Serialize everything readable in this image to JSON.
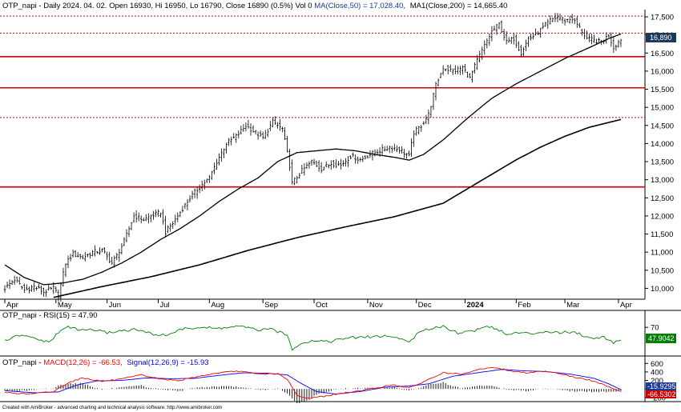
{
  "header": {
    "symbol": "OTP_napi",
    "info": "OTP_napi - Daily 2024. 04. 02. Open 16930, Hi 16950, Lo 16790, Close 16890 (0.5%) Vol 0",
    "ma50_label": "MA(Close,50) = 17,028.40,",
    "ma200_label": "MA1(Close,200) = 14,665.40"
  },
  "footer": {
    "text": "Created with AmiBroker - advanced charting and technical analysis software. http://www.amibroker.com"
  },
  "colors": {
    "price_bar": "#000000",
    "ma50": "#000000",
    "ma200": "#000000",
    "hline_solid": "#cc0000",
    "hline_dotted": "#cc0000",
    "rsi": "#008000",
    "macd": "#ff0000",
    "signal": "#0000ff",
    "histogram": "#000000",
    "badge_bg": "#1c3a57",
    "badge_green": "#008000",
    "badge_red": "#cc0000",
    "axis": "#000000"
  },
  "chart_data": {
    "type": "candlestick",
    "title": "OTP_napi - Daily 2024. 04. 02.",
    "ohlc_last": {
      "open": 16930,
      "high": 16950,
      "low": 16790,
      "close": 16890,
      "change": "0.5%",
      "volume": 0
    },
    "current_price_label": "16,890",
    "y_ticks": [
      "10,000",
      "10,500",
      "11,000",
      "11,500",
      "12,000",
      "12,500",
      "13,000",
      "13,500",
      "14,000",
      "14,500",
      "15,000",
      "15,500",
      "16,000",
      "16,500",
      "17,000",
      "17,500"
    ],
    "ylim": [
      9700,
      17700
    ],
    "x_labels": [
      "Apr",
      "May",
      "Jun",
      "Jul",
      "Aug",
      "Sep",
      "Oct",
      "Nov",
      "Dec",
      "2024",
      "Feb",
      "Mar",
      "Apr"
    ],
    "horizontal_lines": [
      {
        "value": 17520,
        "style": "dotted"
      },
      {
        "value": 17050,
        "style": "dotted"
      },
      {
        "value": 16400,
        "style": "solid"
      },
      {
        "value": 15540,
        "style": "solid"
      },
      {
        "value": 14720,
        "style": "dotted"
      },
      {
        "value": 12800,
        "style": "solid"
      }
    ],
    "close_anchors": [
      [
        0,
        10000
      ],
      [
        4,
        10250
      ],
      [
        8,
        9950
      ],
      [
        12,
        10050
      ],
      [
        16,
        9900
      ],
      [
        20,
        10000
      ],
      [
        22,
        9800
      ],
      [
        25,
        10700
      ],
      [
        28,
        10950
      ],
      [
        32,
        10850
      ],
      [
        36,
        11000
      ],
      [
        40,
        11050
      ],
      [
        44,
        10700
      ],
      [
        46,
        10900
      ],
      [
        49,
        11300
      ],
      [
        53,
        12000
      ],
      [
        57,
        11900
      ],
      [
        60,
        12000
      ],
      [
        64,
        12100
      ],
      [
        66,
        11550
      ],
      [
        69,
        11800
      ],
      [
        72,
        12100
      ],
      [
        76,
        12500
      ],
      [
        80,
        12800
      ],
      [
        84,
        13050
      ],
      [
        87,
        13500
      ],
      [
        91,
        14000
      ],
      [
        95,
        14200
      ],
      [
        99,
        14500
      ],
      [
        103,
        14300
      ],
      [
        106,
        14150
      ],
      [
        110,
        14600
      ],
      [
        114,
        14400
      ],
      [
        117,
        13400
      ],
      [
        118,
        12900
      ],
      [
        122,
        13250
      ],
      [
        126,
        13500
      ],
      [
        130,
        13300
      ],
      [
        134,
        13450
      ],
      [
        138,
        13400
      ],
      [
        142,
        13650
      ],
      [
        146,
        13550
      ],
      [
        150,
        13700
      ],
      [
        154,
        13800
      ],
      [
        158,
        13900
      ],
      [
        162,
        13850
      ],
      [
        166,
        13650
      ],
      [
        168,
        14300
      ],
      [
        171,
        14500
      ],
      [
        174,
        14800
      ],
      [
        177,
        15600
      ],
      [
        180,
        16100
      ],
      [
        184,
        16000
      ],
      [
        188,
        16100
      ],
      [
        191,
        15800
      ],
      [
        194,
        16300
      ],
      [
        197,
        16700
      ],
      [
        200,
        17100
      ],
      [
        203,
        17300
      ],
      [
        206,
        16800
      ],
      [
        209,
        16900
      ],
      [
        212,
        16500
      ],
      [
        215,
        16900
      ],
      [
        218,
        17000
      ],
      [
        221,
        17200
      ],
      [
        224,
        17400
      ],
      [
        227,
        17500
      ],
      [
        230,
        17400
      ],
      [
        233,
        17450
      ],
      [
        236,
        17200
      ],
      [
        239,
        16900
      ],
      [
        242,
        16850
      ],
      [
        245,
        16800
      ],
      [
        248,
        17000
      ],
      [
        250,
        16650
      ],
      [
        253,
        16890
      ]
    ],
    "ma50_anchors": [
      [
        0,
        10650
      ],
      [
        8,
        10300
      ],
      [
        16,
        10100
      ],
      [
        24,
        10150
      ],
      [
        32,
        10250
      ],
      [
        40,
        10450
      ],
      [
        48,
        10700
      ],
      [
        56,
        11000
      ],
      [
        64,
        11350
      ],
      [
        72,
        11650
      ],
      [
        80,
        12000
      ],
      [
        88,
        12400
      ],
      [
        96,
        12750
      ],
      [
        104,
        13050
      ],
      [
        112,
        13500
      ],
      [
        120,
        13750
      ],
      [
        128,
        13800
      ],
      [
        136,
        13850
      ],
      [
        144,
        13800
      ],
      [
        152,
        13700
      ],
      [
        160,
        13620
      ],
      [
        166,
        13540
      ],
      [
        172,
        13700
      ],
      [
        180,
        14100
      ],
      [
        190,
        14700
      ],
      [
        200,
        15250
      ],
      [
        210,
        15650
      ],
      [
        220,
        16000
      ],
      [
        230,
        16350
      ],
      [
        240,
        16650
      ],
      [
        248,
        16900
      ],
      [
        253,
        17028
      ]
    ],
    "ma200_anchors": [
      [
        20,
        9750
      ],
      [
        40,
        10050
      ],
      [
        60,
        10320
      ],
      [
        80,
        10650
      ],
      [
        100,
        11050
      ],
      [
        120,
        11400
      ],
      [
        140,
        11700
      ],
      [
        160,
        11980
      ],
      [
        180,
        12350
      ],
      [
        190,
        12750
      ],
      [
        200,
        13150
      ],
      [
        210,
        13550
      ],
      [
        220,
        13900
      ],
      [
        230,
        14200
      ],
      [
        240,
        14450
      ],
      [
        253,
        14665
      ]
    ],
    "rsi": {
      "label": "OTP_napi - RSI(15) = 47.90",
      "value_label": "47.9042",
      "y_tick": "70",
      "ylim": [
        20,
        85
      ],
      "anchors": [
        [
          0,
          45
        ],
        [
          6,
          55
        ],
        [
          12,
          50
        ],
        [
          18,
          42
        ],
        [
          22,
          60
        ],
        [
          26,
          72
        ],
        [
          30,
          65
        ],
        [
          36,
          66
        ],
        [
          42,
          60
        ],
        [
          48,
          64
        ],
        [
          54,
          66
        ],
        [
          60,
          58
        ],
        [
          66,
          55
        ],
        [
          72,
          66
        ],
        [
          80,
          70
        ],
        [
          88,
          68
        ],
        [
          96,
          72
        ],
        [
          104,
          65
        ],
        [
          110,
          66
        ],
        [
          116,
          55
        ],
        [
          118,
          30
        ],
        [
          122,
          42
        ],
        [
          128,
          46
        ],
        [
          134,
          44
        ],
        [
          140,
          50
        ],
        [
          148,
          52
        ],
        [
          156,
          54
        ],
        [
          162,
          50
        ],
        [
          166,
          43
        ],
        [
          170,
          60
        ],
        [
          176,
          70
        ],
        [
          180,
          72
        ],
        [
          186,
          60
        ],
        [
          192,
          63
        ],
        [
          198,
          72
        ],
        [
          202,
          68
        ],
        [
          206,
          56
        ],
        [
          210,
          60
        ],
        [
          216,
          58
        ],
        [
          222,
          63
        ],
        [
          228,
          60
        ],
        [
          234,
          62
        ],
        [
          240,
          50
        ],
        [
          246,
          52
        ],
        [
          250,
          42
        ],
        [
          253,
          47.9
        ]
      ]
    },
    "macd": {
      "label_prefix": "OTP_napi - ",
      "macd_label": "MACD(12,26) = -66.53,",
      "signal_label": "Signal(12,26,9) = -15.93",
      "value_macd": "-66.5302",
      "value_signal": "-15.9295",
      "y_ticks": [
        "600",
        "400",
        "200",
        "0",
        "-200"
      ],
      "ylim": [
        -260,
        700
      ],
      "macd_anchors": [
        [
          0,
          -80
        ],
        [
          10,
          -120
        ],
        [
          20,
          -60
        ],
        [
          26,
          150
        ],
        [
          32,
          260
        ],
        [
          40,
          180
        ],
        [
          48,
          230
        ],
        [
          56,
          330
        ],
        [
          64,
          230
        ],
        [
          72,
          200
        ],
        [
          80,
          300
        ],
        [
          88,
          380
        ],
        [
          96,
          420
        ],
        [
          104,
          350
        ],
        [
          112,
          360
        ],
        [
          116,
          220
        ],
        [
          120,
          -150
        ],
        [
          124,
          -220
        ],
        [
          130,
          -180
        ],
        [
          140,
          -90
        ],
        [
          150,
          0
        ],
        [
          160,
          100
        ],
        [
          166,
          20
        ],
        [
          172,
          170
        ],
        [
          180,
          380
        ],
        [
          188,
          340
        ],
        [
          196,
          480
        ],
        [
          202,
          500
        ],
        [
          208,
          420
        ],
        [
          214,
          380
        ],
        [
          220,
          420
        ],
        [
          226,
          390
        ],
        [
          232,
          300
        ],
        [
          240,
          210
        ],
        [
          248,
          60
        ],
        [
          253,
          -66.5
        ]
      ],
      "signal_anchors": [
        [
          0,
          -40
        ],
        [
          12,
          -90
        ],
        [
          22,
          -70
        ],
        [
          30,
          100
        ],
        [
          38,
          190
        ],
        [
          48,
          200
        ],
        [
          58,
          260
        ],
        [
          68,
          240
        ],
        [
          78,
          250
        ],
        [
          88,
          320
        ],
        [
          98,
          380
        ],
        [
          108,
          370
        ],
        [
          116,
          330
        ],
        [
          122,
          120
        ],
        [
          128,
          -60
        ],
        [
          136,
          -120
        ],
        [
          146,
          -60
        ],
        [
          156,
          40
        ],
        [
          166,
          70
        ],
        [
          174,
          120
        ],
        [
          184,
          300
        ],
        [
          194,
          380
        ],
        [
          204,
          460
        ],
        [
          212,
          430
        ],
        [
          222,
          410
        ],
        [
          232,
          350
        ],
        [
          242,
          250
        ],
        [
          248,
          120
        ],
        [
          253,
          -15.9
        ]
      ]
    }
  }
}
